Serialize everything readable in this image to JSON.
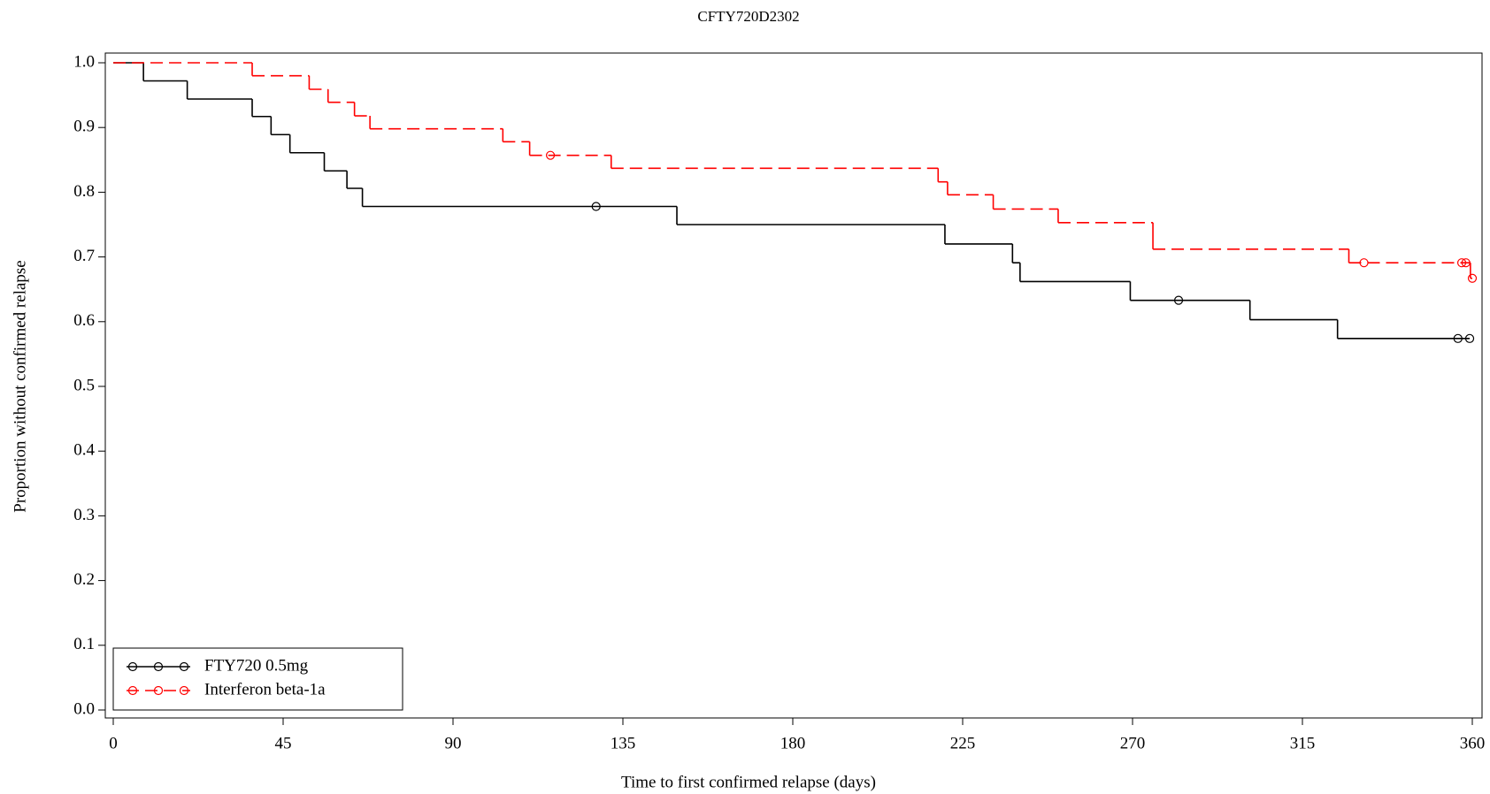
{
  "chart_data": {
    "type": "step",
    "title": "CFTY720D2302",
    "x_label": "Time to first confirmed relapse (days)",
    "y_label": "Proportion without confirmed relapse",
    "xlim": [
      0,
      360
    ],
    "xticks": [
      0,
      45,
      90,
      135,
      180,
      225,
      270,
      315,
      360
    ],
    "ylim": [
      0,
      1
    ],
    "yticks": [
      {
        "value": 0,
        "label": "0.0"
      },
      0.1,
      0.2,
      0.3,
      0.4,
      0.5,
      0.6,
      0.7,
      0.8,
      0.9,
      {
        "value": 1,
        "label": "1.0"
      }
    ],
    "legend": "lower left",
    "series": [
      {
        "name": "FTY720 0.5mg",
        "color": "#000000",
        "dash": "solid",
        "x": [
          0,
          8,
          19.6,
          36.8,
          41.8,
          46.8,
          55.9,
          61.9,
          66,
          149.3,
          220.3,
          238.2,
          240.2,
          269.4,
          301.1,
          324.3
        ],
        "values": [
          1,
          0.972,
          0.944,
          0.917,
          0.889,
          0.861,
          0.833,
          0.806,
          0.778,
          0.75,
          0.72,
          0.691,
          0.662,
          0.633,
          0.603,
          0.574
        ],
        "censor_x": [
          127.9,
          282.2,
          356.2,
          359.3
        ],
        "censor_values": [
          0.778,
          0.633,
          0.574,
          0.574
        ]
      },
      {
        "name": "Interferon beta-1a",
        "color": "#ff0000",
        "dash": "dashed",
        "x": [
          0,
          36.8,
          51.9,
          56.9,
          63.9,
          68,
          103.2,
          110.3,
          131.9,
          218.5,
          221,
          233.1,
          250.3,
          275.4,
          327.3,
          359.5
        ],
        "values": [
          1,
          0.98,
          0.959,
          0.939,
          0.918,
          0.898,
          0.878,
          0.857,
          0.837,
          0.816,
          0.796,
          0.774,
          0.753,
          0.712,
          0.691,
          0.667
        ],
        "censor_x": [
          115.8,
          331.3,
          357.2,
          358.3,
          360
        ],
        "censor_values": [
          0.857,
          0.691,
          0.691,
          0.691,
          0.667
        ]
      }
    ]
  }
}
